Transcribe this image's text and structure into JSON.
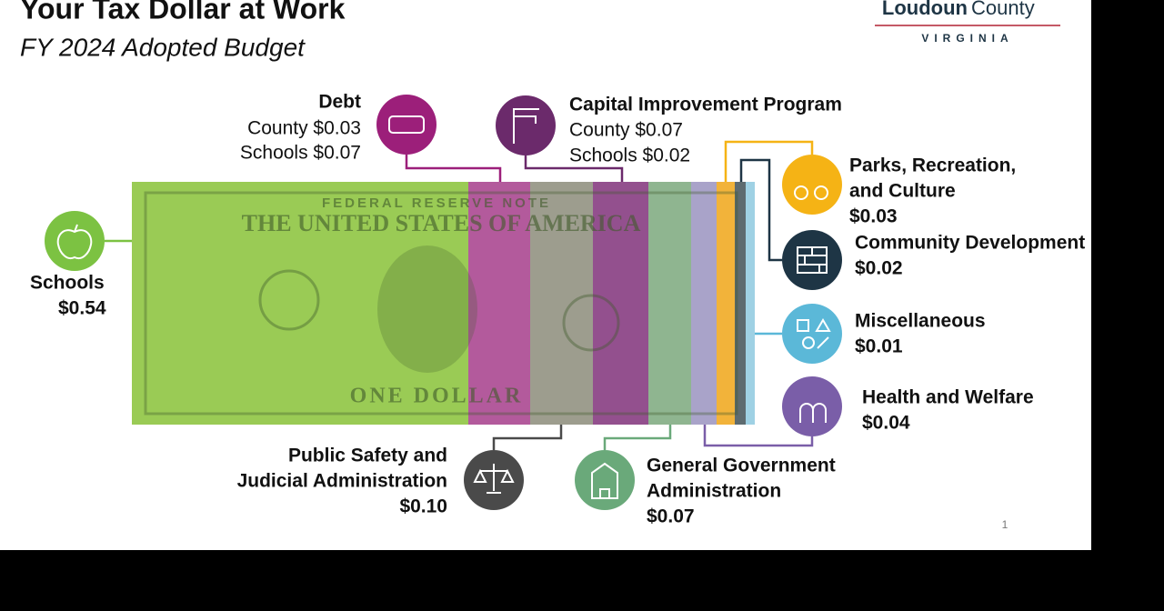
{
  "header": {
    "title": "Your Tax Dollar at Work",
    "subtitle": "FY 2024 Adopted Budget"
  },
  "logo": {
    "name_bold": "Loudoun",
    "name": "County",
    "state": "VIRGINIA"
  },
  "bill_text": [
    "FEDERAL RESERVE NOTE",
    "THE UNITED STATES OF AMERICA",
    "ONE DOLLAR"
  ],
  "items": [
    {
      "label_lines": [
        "Schools"
      ],
      "amount": "$0.54"
    },
    {
      "label_lines": [
        "Debt"
      ],
      "details": [
        "County $0.03",
        "Schools $0.07"
      ]
    },
    {
      "label_lines": [
        "Capital Improvement Program"
      ],
      "details": [
        "County $0.07",
        "Schools $0.02"
      ]
    },
    {
      "label_lines": [
        "Parks, Recreation,",
        "and Culture"
      ],
      "amount": "$0.03"
    },
    {
      "label_lines": [
        "Community Development"
      ],
      "amount": "$0.02"
    },
    {
      "label_lines": [
        "Miscellaneous"
      ],
      "amount": "$0.01"
    },
    {
      "label_lines": [
        "Health and Welfare"
      ],
      "amount": "$0.04"
    },
    {
      "label_lines": [
        "Public Safety and",
        "Judicial Administration"
      ],
      "amount": "$0.10"
    },
    {
      "label_lines": [
        "General Government",
        "Administration"
      ],
      "amount": "$0.07"
    }
  ],
  "page_number": "1"
}
